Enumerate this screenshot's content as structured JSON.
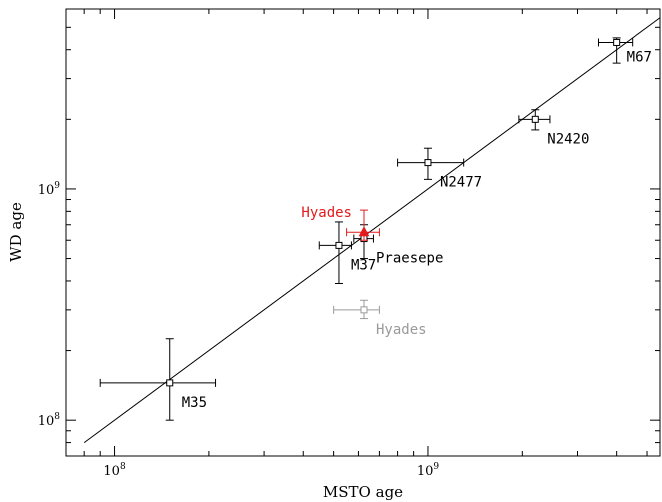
{
  "chart_data": {
    "type": "scatter",
    "xlabel": "MSTO age",
    "ylabel": "WD age",
    "xscale": "log",
    "yscale": "log",
    "xlim": [
      70000000,
      5500000000
    ],
    "ylim": [
      70000000,
      6000000000
    ],
    "x_tick_labels": [
      {
        "value": 100000000,
        "base": "10",
        "exp": "8"
      },
      {
        "value": 1000000000,
        "base": "10",
        "exp": "9"
      }
    ],
    "y_tick_labels": [
      {
        "value": 100000000,
        "base": "10",
        "exp": "8"
      },
      {
        "value": 1000000000,
        "base": "10",
        "exp": "9"
      }
    ],
    "reference_line": {
      "x": [
        80000000,
        5500000000
      ],
      "y": [
        80000000,
        5500000000
      ]
    },
    "colors": {
      "default": "#000000",
      "highlight": "#e41a1c",
      "muted": "#9a9a9a"
    },
    "points": [
      {
        "label": "M35",
        "x": 150000000,
        "y": 145000000,
        "xerr": [
          90000000,
          210000000
        ],
        "yerr": [
          100000000,
          225000000
        ],
        "color": "#000000",
        "marker": "square",
        "label_pos": "below-right"
      },
      {
        "label": "M37",
        "x": 520000000,
        "y": 570000000,
        "xerr": [
          450000000,
          570000000
        ],
        "yerr": [
          390000000,
          720000000
        ],
        "color": "#000000",
        "marker": "square",
        "label_pos": "below-right"
      },
      {
        "label": "Praesepe",
        "x": 625000000,
        "y": 610000000,
        "xerr": [
          580000000,
          670000000
        ],
        "yerr": [
          500000000,
          700000000
        ],
        "color": "#000000",
        "marker": "square",
        "label_pos": "below-right"
      },
      {
        "label": "Hyades",
        "x": 625000000,
        "y": 650000000,
        "xerr": [
          550000000,
          700000000
        ],
        "yerr": [
          600000000,
          810000000
        ],
        "color": "#e41a1c",
        "marker": "triangle",
        "label_pos": "upper-left"
      },
      {
        "label": "Hyades",
        "x": 625000000,
        "y": 300000000,
        "xerr": [
          500000000,
          700000000
        ],
        "yerr": [
          275000000,
          330000000
        ],
        "color": "#9a9a9a",
        "marker": "square",
        "label_pos": "below-right"
      },
      {
        "label": "N2477",
        "x": 1000000000,
        "y": 1300000000,
        "xerr": [
          800000000,
          1300000000
        ],
        "yerr": [
          1100000000,
          1500000000
        ],
        "color": "#000000",
        "marker": "square",
        "label_pos": "below-right"
      },
      {
        "label": "N2420",
        "x": 2200000000,
        "y": 2000000000,
        "xerr": [
          1950000000,
          2450000000
        ],
        "yerr": [
          1800000000,
          2200000000
        ],
        "color": "#000000",
        "marker": "square",
        "label_pos": "below-right"
      },
      {
        "label": "M67",
        "x": 4000000000,
        "y": 4300000000,
        "xerr": [
          3500000000,
          4500000000
        ],
        "yerr": [
          3500000000,
          4500000000
        ],
        "color": "#000000",
        "marker": "square",
        "label_pos": "right"
      }
    ]
  }
}
